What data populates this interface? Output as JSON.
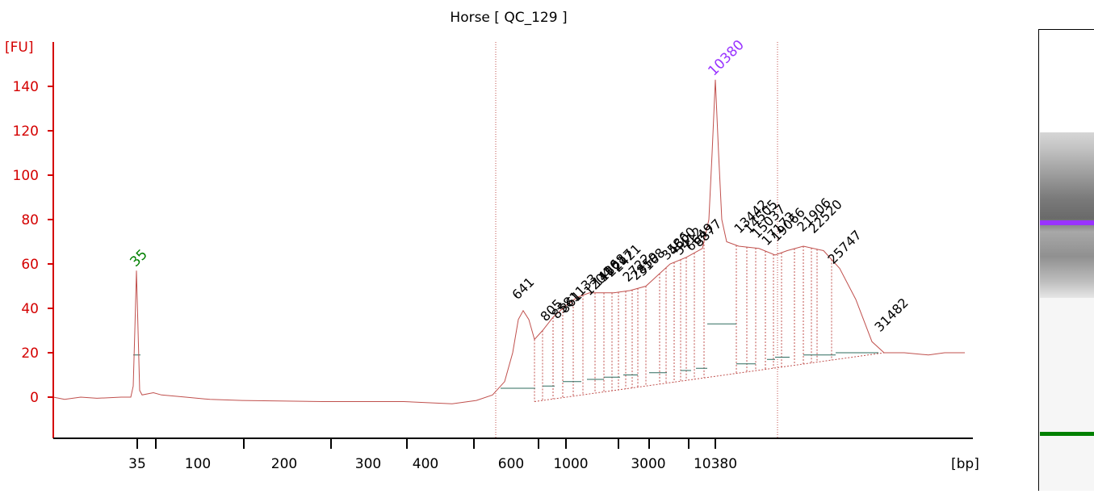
{
  "chart_data": {
    "type": "line",
    "title": "Horse  [ QC_129 ]",
    "xlabel": "[bp]",
    "ylabel": "[FU]",
    "ylim": [
      -20,
      150
    ],
    "y_ticks": [
      0,
      20,
      40,
      60,
      80,
      100,
      120,
      140
    ],
    "x_tick_labels": [
      "35",
      "100",
      "200",
      "300",
      "400",
      "600",
      "1000",
      "3000",
      "10380"
    ],
    "marker_lower_bp": 35,
    "marker_upper_bp": 10380,
    "peaks": [
      {
        "label": "35",
        "fu": 57,
        "kind": "lower-marker"
      },
      {
        "label": "10380",
        "fu": 143,
        "kind": "upper-marker"
      }
    ],
    "fragment_labels": [
      "641",
      "805",
      "858",
      "861",
      "1133",
      "1204",
      "1416",
      "1808",
      "2217",
      "2421",
      "2722",
      "2859",
      "3168",
      "3586",
      "4600",
      "5412",
      "6649",
      "8877",
      "13442",
      "14505",
      "15037",
      "17173",
      "19066",
      "21906",
      "22520",
      "25747",
      "31482"
    ],
    "colors": {
      "axis": "#d40000",
      "trace": "#c0504d",
      "lower_marker": "#008000",
      "upper_marker": "#9933ff",
      "label": "#000000"
    }
  }
}
